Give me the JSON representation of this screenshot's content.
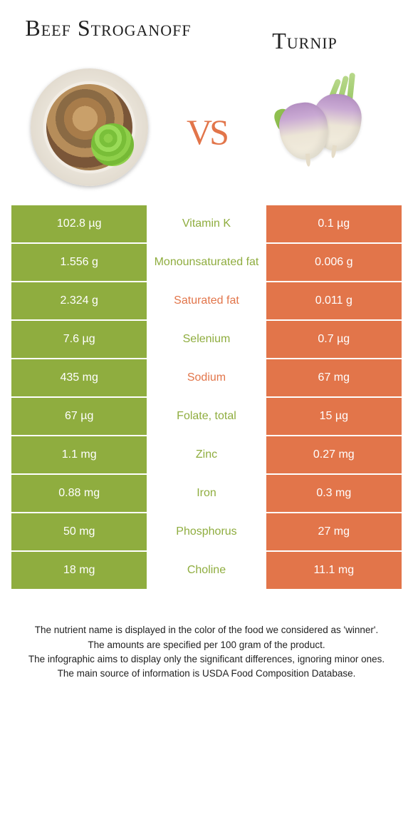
{
  "header": {
    "food1": "Beef Stroganoff",
    "food2": "Turnip",
    "vs": "vs"
  },
  "colors": {
    "food1_color": "#8fad3f",
    "food2_color": "#e2754a"
  },
  "table": {
    "rows": [
      {
        "left": "102.8 µg",
        "nutrient": "Vitamin K",
        "right": "0.1 µg",
        "winner": "food1"
      },
      {
        "left": "1.556 g",
        "nutrient": "Monounsaturated fat",
        "right": "0.006 g",
        "winner": "food1"
      },
      {
        "left": "2.324 g",
        "nutrient": "Saturated fat",
        "right": "0.011 g",
        "winner": "food2"
      },
      {
        "left": "7.6 µg",
        "nutrient": "Selenium",
        "right": "0.7 µg",
        "winner": "food1"
      },
      {
        "left": "435 mg",
        "nutrient": "Sodium",
        "right": "67 mg",
        "winner": "food2"
      },
      {
        "left": "67 µg",
        "nutrient": "Folate, total",
        "right": "15 µg",
        "winner": "food1"
      },
      {
        "left": "1.1 mg",
        "nutrient": "Zinc",
        "right": "0.27 mg",
        "winner": "food1"
      },
      {
        "left": "0.88 mg",
        "nutrient": "Iron",
        "right": "0.3 mg",
        "winner": "food1"
      },
      {
        "left": "50 mg",
        "nutrient": "Phosphorus",
        "right": "27 mg",
        "winner": "food1"
      },
      {
        "left": "18 mg",
        "nutrient": "Choline",
        "right": "11.1 mg",
        "winner": "food1"
      }
    ]
  },
  "footnotes": {
    "line1": "The nutrient name is displayed in the color of the food we considered as 'winner'.",
    "line2": "The amounts are specified per 100 gram of the product.",
    "line3": "The infographic aims to display only the significant differences, ignoring minor ones.",
    "line4": "The main source of information is USDA Food Composition Database."
  }
}
